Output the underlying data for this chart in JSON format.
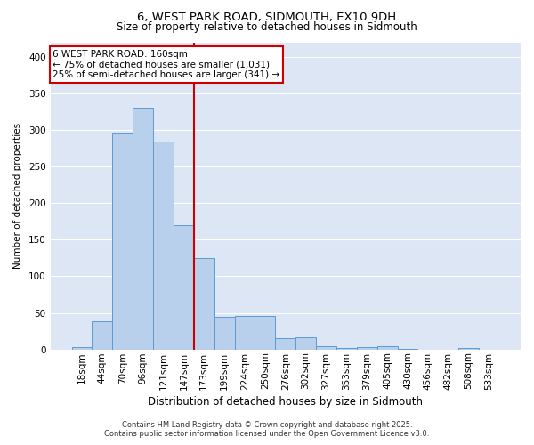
{
  "title1": "6, WEST PARK ROAD, SIDMOUTH, EX10 9DH",
  "title2": "Size of property relative to detached houses in Sidmouth",
  "xlabel": "Distribution of detached houses by size in Sidmouth",
  "ylabel": "Number of detached properties",
  "categories": [
    "18sqm",
    "44sqm",
    "70sqm",
    "96sqm",
    "121sqm",
    "147sqm",
    "173sqm",
    "199sqm",
    "224sqm",
    "250sqm",
    "276sqm",
    "302sqm",
    "327sqm",
    "353sqm",
    "379sqm",
    "405sqm",
    "430sqm",
    "456sqm",
    "482sqm",
    "508sqm",
    "533sqm"
  ],
  "values": [
    3,
    38,
    296,
    330,
    284,
    170,
    125,
    44,
    46,
    46,
    15,
    17,
    4,
    2,
    3,
    5,
    1,
    0,
    0,
    2,
    0
  ],
  "bar_color": "#b8d0eb",
  "bar_edge_color": "#5b9bd5",
  "background_color": "#dce6f5",
  "grid_color": "#ffffff",
  "vline_color": "#cc0000",
  "annotation_title": "6 WEST PARK ROAD: 160sqm",
  "annotation_line1": "← 75% of detached houses are smaller (1,031)",
  "annotation_line2": "25% of semi-detached houses are larger (341) →",
  "annotation_box_edgecolor": "#cc0000",
  "footer1": "Contains HM Land Registry data © Crown copyright and database right 2025.",
  "footer2": "Contains public sector information licensed under the Open Government Licence v3.0.",
  "ylim": [
    0,
    420
  ],
  "yticks": [
    0,
    50,
    100,
    150,
    200,
    250,
    300,
    350,
    400
  ],
  "title1_fontsize": 9.5,
  "title2_fontsize": 8.5,
  "xlabel_fontsize": 8.5,
  "ylabel_fontsize": 7.5,
  "tick_fontsize": 7.5,
  "footer_fontsize": 6.0,
  "ann_fontsize": 7.5
}
